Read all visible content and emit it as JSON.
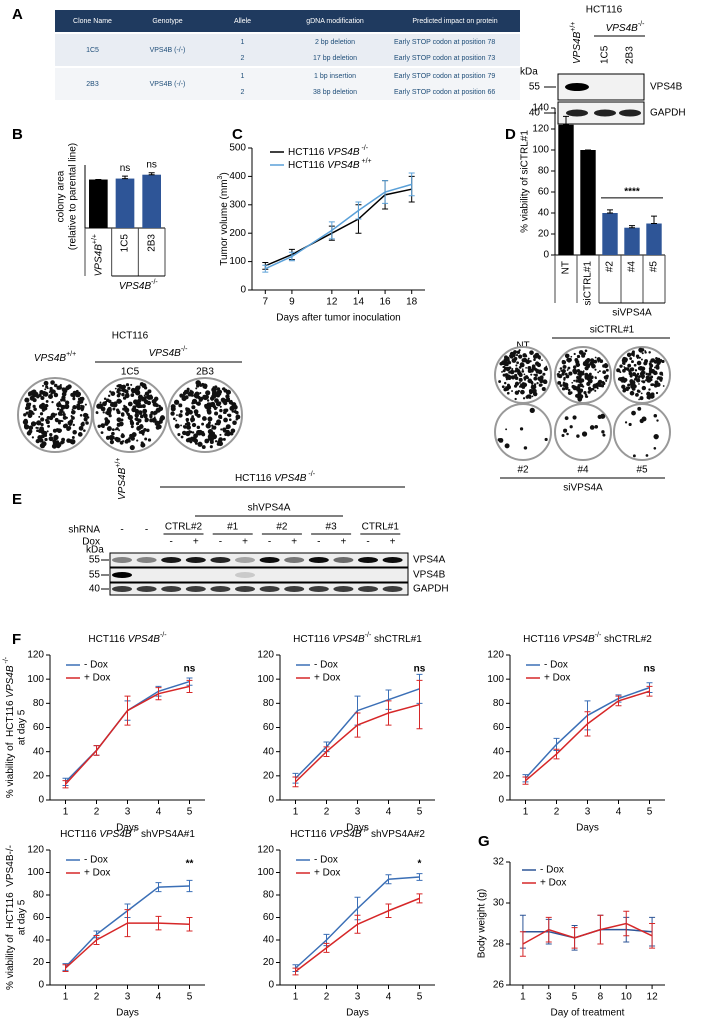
{
  "panel_labels": [
    "A",
    "B",
    "C",
    "D",
    "E",
    "F",
    "G"
  ],
  "table": {
    "header": [
      "Clone Name",
      "Genotype",
      "Allele",
      "gDNA modification",
      "Predicted impact on protein"
    ],
    "clones": [
      {
        "name": "1C5",
        "genotype": "VPS4B (-/-)",
        "alleles": [
          {
            "allele": 1,
            "modification": "2 bp deletion",
            "impact": "Early STOP codon at position 78"
          },
          {
            "allele": 2,
            "modification": "17 bp deletion",
            "impact": "Early STOP codon at position 73"
          }
        ]
      },
      {
        "name": "2B3",
        "genotype": "VPS4B (-/-)",
        "alleles": [
          {
            "allele": 1,
            "modification": "1 bp insertion",
            "impact": "Early STOP codon at position 79"
          },
          {
            "allele": 2,
            "modification": "38 bp deletion",
            "impact": "Early STOP codon at position 66"
          }
        ]
      }
    ]
  },
  "blot_a": {
    "title": "HCT116",
    "lanes": [
      [
        {
          "text": "VPS4B",
          "style": "italic"
        },
        {
          "text": "+/+",
          "style": "sup"
        }
      ],
      "1C5",
      "2B3"
    ],
    "group": [
      {
        "text": "VPS4B",
        "style": "italic"
      },
      {
        "text": "-/-",
        "style": "sup"
      }
    ],
    "unit": "kDa",
    "markers": [
      55,
      40
    ],
    "bands": [
      "VPS4B",
      "GAPDH"
    ]
  },
  "colonies_b": {
    "title": "HCT116",
    "group": [
      {
        "text": "VPS4B",
        "style": "italic"
      },
      {
        "text": "-/-",
        "style": "sup"
      }
    ],
    "labels": [
      [
        {
          "text": "VPS4B",
          "style": "italic"
        },
        {
          "text": "+/+",
          "style": "sup"
        }
      ],
      "1C5",
      "2B3"
    ]
  },
  "colonies_d": {
    "labels_top": [
      "NT",
      "siCTRL#1"
    ],
    "labels_bottom": [
      "#2",
      "#4",
      "#5"
    ],
    "group": "siVPS4A"
  },
  "blot_e": {
    "lane1": [
      {
        "text": "VPS4B",
        "style": "italic"
      },
      {
        "text": "+/+",
        "style": "sup"
      }
    ],
    "title": [
      {
        "text": "HCT116 "
      },
      {
        "text": "VPS4B",
        "style": "italic"
      },
      {
        "text": " -/-",
        "style": "sup"
      }
    ],
    "subgroup": "shVPS4A",
    "row_labels": [
      "shRNA",
      "Dox"
    ],
    "shrna_single": [
      "-",
      "-"
    ],
    "shrna_groups": [
      "CTRL#2",
      "#1",
      "#2",
      "#3",
      "CTRL#1"
    ],
    "dox": [
      "-",
      "+",
      "-",
      "+",
      "-",
      "+",
      "-",
      "+",
      "-",
      "+"
    ],
    "unit": "kDa",
    "markers": [
      55,
      55,
      40
    ],
    "bands": [
      "VPS4A",
      "VPS4B",
      "GAPDH"
    ]
  },
  "chart_data": [
    {
      "type": "bar",
      "ylabel": [
        "colony area",
        "(relative to parental line)"
      ],
      "categories": [
        [
          {
            "text": "VPS4B",
            "style": "italic"
          },
          {
            "text": "+/+",
            "style": "sup"
          }
        ],
        "1C5",
        "2B3"
      ],
      "values": [
        1,
        1.02,
        1.1
      ],
      "errors": [
        0,
        0.05,
        0.04
      ],
      "colors": [
        "#000000",
        "#2e5597",
        "#2e5597"
      ],
      "ylim": [
        0,
        1.3
      ],
      "group": {
        "label": [
          {
            "text": "VPS4B",
            "style": "italic"
          },
          {
            "text": "-/-",
            "style": "sup"
          }
        ],
        "from": "1C5",
        "to": "2B3"
      },
      "annotations": [
        {
          "text": "ns",
          "from": "1C5",
          "to": "1C5"
        },
        {
          "text": "ns",
          "from": "2B3",
          "to": "2B3"
        }
      ]
    },
    {
      "type": "line",
      "xlabel": "Days after tumor inoculation",
      "ylabel": [
        [
          {
            "text": "Tumor volume (mm"
          },
          {
            "text": "3",
            "style": "sup"
          },
          {
            "text": ")"
          }
        ]
      ],
      "x": [
        7,
        9,
        12,
        14,
        16,
        18
      ],
      "xlim": [
        6,
        19
      ],
      "xticks": [
        7,
        9,
        12,
        14,
        16,
        18
      ],
      "ylim": [
        0,
        500
      ],
      "yticks": [
        0,
        100,
        200,
        300,
        400,
        500
      ],
      "series": [
        {
          "name": [
            {
              "text": "HCT116 "
            },
            {
              "text": "VPS4B",
              "style": "italic"
            },
            {
              "text": " -/-",
              "style": "sup"
            }
          ],
          "color": "#000000",
          "values": [
            85,
            125,
            200,
            250,
            335,
            355
          ],
          "errors": [
            12,
            18,
            25,
            50,
            50,
            45
          ]
        },
        {
          "name": [
            {
              "text": "HCT116 "
            },
            {
              "text": "VPS4B",
              "style": "italic"
            },
            {
              "text": " +/+",
              "style": "sup"
            }
          ],
          "color": "#5aa0d8",
          "values": [
            75,
            118,
            210,
            280,
            345,
            372
          ],
          "errors": [
            12,
            15,
            30,
            30,
            40,
            40
          ]
        }
      ]
    },
    {
      "type": "bar",
      "ylabel": [
        "% viability of siCTRL#1"
      ],
      "categories": [
        "NT",
        "siCTRL#1",
        "#2",
        "#4",
        "#5"
      ],
      "values": [
        124,
        100,
        40,
        26,
        30
      ],
      "errors": [
        8,
        0,
        3,
        2,
        7
      ],
      "colors": [
        "#000000",
        "#000000",
        "#2e5597",
        "#2e5597",
        "#2e5597"
      ],
      "ylim": [
        0,
        140
      ],
      "yticks": [
        0,
        20,
        40,
        60,
        80,
        100,
        120,
        140
      ],
      "group": {
        "label": "siVPS4A",
        "from": "#2",
        "to": "#5"
      },
      "annotations": [
        {
          "text": "****",
          "from": "#2",
          "to": "#5"
        }
      ]
    },
    {
      "type": "line",
      "title": [
        {
          "text": "HCT116 "
        },
        {
          "text": "VPS4B",
          "style": "italic"
        },
        {
          "text": "-/-",
          "style": "sup"
        }
      ],
      "xlabel": "Days",
      "ylabel": [
        [
          {
            "text": "% viability of  HCT116 "
          },
          {
            "text": "VPS4B",
            "style": "italic"
          },
          {
            "text": " -/-",
            "style": "sup"
          }
        ],
        "at day 5"
      ],
      "x": [
        1,
        2,
        3,
        4,
        5
      ],
      "xlim": [
        0.5,
        5.5
      ],
      "xticks": [
        1,
        2,
        3,
        4,
        5
      ],
      "ylim": [
        0,
        120
      ],
      "yticks": [
        0,
        20,
        40,
        60,
        80,
        100,
        120
      ],
      "annotation": "ns",
      "series": [
        {
          "name": "- Dox",
          "color": "#3b6fb6",
          "values": [
            15,
            41,
            74,
            90,
            98
          ],
          "errors": [
            3,
            4,
            8,
            4,
            3
          ]
        },
        {
          "name": "+ Dox",
          "color": "#d62728",
          "values": [
            13,
            41,
            74,
            88,
            94
          ],
          "errors": [
            3,
            4,
            12,
            5,
            5
          ]
        }
      ]
    },
    {
      "type": "line",
      "title": [
        {
          "text": "HCT116 "
        },
        {
          "text": "VPS4B",
          "style": "italic"
        },
        {
          "text": "-/-",
          "style": "sup"
        },
        {
          "text": " shCTRL#1"
        }
      ],
      "xlabel": "Days",
      "x": [
        1,
        2,
        3,
        4,
        5
      ],
      "xlim": [
        0.5,
        5.5
      ],
      "xticks": [
        1,
        2,
        3,
        4,
        5
      ],
      "ylim": [
        0,
        120
      ],
      "yticks": [
        0,
        20,
        40,
        60,
        80,
        100,
        120
      ],
      "annotation": "ns",
      "series": [
        {
          "name": "- Dox",
          "color": "#3b6fb6",
          "values": [
            18,
            44,
            74,
            83,
            92
          ],
          "errors": [
            4,
            4,
            12,
            8,
            12
          ]
        },
        {
          "name": "+ Dox",
          "color": "#d62728",
          "values": [
            15,
            40,
            62,
            72,
            79
          ],
          "errors": [
            4,
            4,
            10,
            10,
            20
          ]
        }
      ]
    },
    {
      "type": "line",
      "title": [
        {
          "text": "HCT116 "
        },
        {
          "text": "VPS4B",
          "style": "italic"
        },
        {
          "text": "-/-",
          "style": "sup"
        },
        {
          "text": " shCTRL#2"
        }
      ],
      "xlabel": "Days",
      "x": [
        1,
        2,
        3,
        4,
        5
      ],
      "xlim": [
        0.5,
        5.5
      ],
      "xticks": [
        1,
        2,
        3,
        4,
        5
      ],
      "ylim": [
        0,
        120
      ],
      "yticks": [
        0,
        20,
        40,
        60,
        80,
        100,
        120
      ],
      "annotation": "ns",
      "series": [
        {
          "name": "- Dox",
          "color": "#3b6fb6",
          "values": [
            18,
            46,
            70,
            84,
            93
          ],
          "errors": [
            3,
            5,
            12,
            3,
            4
          ]
        },
        {
          "name": "+ Dox",
          "color": "#d62728",
          "values": [
            16,
            38,
            63,
            82,
            90
          ],
          "errors": [
            3,
            4,
            10,
            4,
            4
          ]
        }
      ]
    },
    {
      "type": "line",
      "title": [
        {
          "text": "HCT116 "
        },
        {
          "text": "VPS4B",
          "style": "italic"
        },
        {
          "text": "-/-",
          "style": "sup"
        },
        {
          "text": " shVPS4A#1"
        }
      ],
      "xlabel": "Days",
      "ylabel": [
        [
          {
            "text": "% viability of  HCT116  "
          },
          {
            "text": "VPS4B-/-"
          }
        ],
        "at day 5"
      ],
      "x": [
        1,
        2,
        3,
        4,
        5
      ],
      "xlim": [
        0.5,
        5.5
      ],
      "xticks": [
        1,
        2,
        3,
        4,
        5
      ],
      "ylim": [
        0,
        120
      ],
      "yticks": [
        0,
        20,
        40,
        60,
        80,
        100,
        120
      ],
      "annotation": "**",
      "series": [
        {
          "name": "- Dox",
          "color": "#3b6fb6",
          "values": [
            16,
            45,
            66,
            87,
            88
          ],
          "errors": [
            3,
            3,
            6,
            4,
            5
          ]
        },
        {
          "name": "+ Dox",
          "color": "#d62728",
          "values": [
            15,
            40,
            55,
            55,
            54
          ],
          "errors": [
            3,
            4,
            12,
            6,
            6
          ]
        }
      ]
    },
    {
      "type": "line",
      "title": [
        {
          "text": "HCT116 "
        },
        {
          "text": "VPS4B",
          "style": "italic"
        },
        {
          "text": "-/-",
          "style": "sup"
        },
        {
          "text": " shVPS4A#2"
        }
      ],
      "xlabel": "Days",
      "x": [
        1,
        2,
        3,
        4,
        5
      ],
      "xlim": [
        0.5,
        5.5
      ],
      "xticks": [
        1,
        2,
        3,
        4,
        5
      ],
      "ylim": [
        0,
        120
      ],
      "yticks": [
        0,
        20,
        40,
        60,
        80,
        100,
        120
      ],
      "annotation": "*",
      "series": [
        {
          "name": "- Dox",
          "color": "#3b6fb6",
          "values": [
            15,
            40,
            68,
            94,
            96
          ],
          "errors": [
            3,
            5,
            10,
            4,
            3
          ]
        },
        {
          "name": "+ Dox",
          "color": "#d62728",
          "values": [
            12,
            33,
            54,
            66,
            77
          ],
          "errors": [
            3,
            4,
            8,
            6,
            4
          ]
        }
      ]
    },
    {
      "type": "line",
      "xlabel": "Day of treatment",
      "ylabel": [
        "Body weight (g)"
      ],
      "categories": [
        "1",
        "3",
        "5",
        "8",
        "10",
        "12"
      ],
      "ylim": [
        26,
        32
      ],
      "yticks": [
        26,
        28,
        30,
        32
      ],
      "series": [
        {
          "name": "- Dox",
          "color": "#2e5597",
          "values": [
            28.6,
            28.6,
            28.3,
            28.7,
            28.7,
            28.6
          ],
          "errors": [
            0.8,
            0.6,
            0.6,
            0.7,
            0.6,
            0.7
          ]
        },
        {
          "name": "+ Dox",
          "color": "#d62728",
          "values": [
            28.0,
            28.7,
            28.3,
            28.7,
            29.0,
            28.4
          ],
          "errors": [
            0.6,
            0.6,
            0.5,
            0.7,
            0.6,
            0.6
          ]
        }
      ]
    }
  ]
}
